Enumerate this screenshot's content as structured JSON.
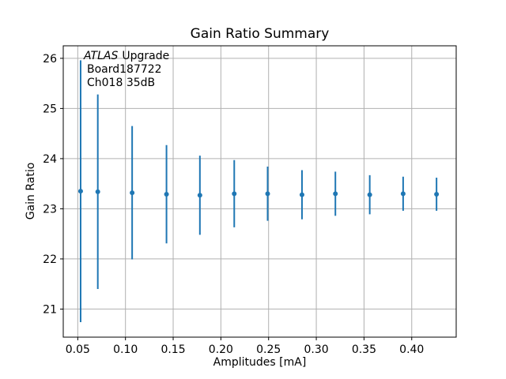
{
  "chart_data": {
    "type": "scatter",
    "subtype": "errorbar",
    "title": "Gain Ratio Summary",
    "xlabel": "Amplitudes [mA]",
    "ylabel": "Gain Ratio",
    "x": [
      0.053,
      0.071,
      0.107,
      0.143,
      0.178,
      0.214,
      0.249,
      0.285,
      0.32,
      0.356,
      0.391,
      0.426
    ],
    "y": [
      23.35,
      23.34,
      23.32,
      23.29,
      23.27,
      23.3,
      23.3,
      23.28,
      23.3,
      23.28,
      23.3,
      23.29
    ],
    "yerr": [
      2.61,
      1.94,
      1.33,
      0.98,
      0.79,
      0.67,
      0.54,
      0.49,
      0.44,
      0.39,
      0.34,
      0.33
    ],
    "xlim": [
      0.0348,
      0.4466
    ],
    "ylim": [
      20.44,
      26.25
    ],
    "xticks": [
      0.05,
      0.1,
      0.15,
      0.2,
      0.25,
      0.3,
      0.35,
      0.4
    ],
    "xtick_labels": [
      "0.05",
      "0.10",
      "0.15",
      "0.20",
      "0.25",
      "0.30",
      "0.35",
      "0.40"
    ],
    "yticks": [
      21,
      22,
      23,
      24,
      25,
      26
    ],
    "ytick_labels": [
      "21",
      "22",
      "23",
      "24",
      "25",
      "26"
    ],
    "grid": true,
    "legend": "none",
    "series_color": "#1f77b4",
    "grid_color": "#b0b0b0",
    "frame_color": "#000000",
    "annotation": {
      "line1_italic": "ATLAS",
      "line1_rest": "Upgrade",
      "line2": "Board187722",
      "line3": "Ch018 35dB"
    }
  }
}
